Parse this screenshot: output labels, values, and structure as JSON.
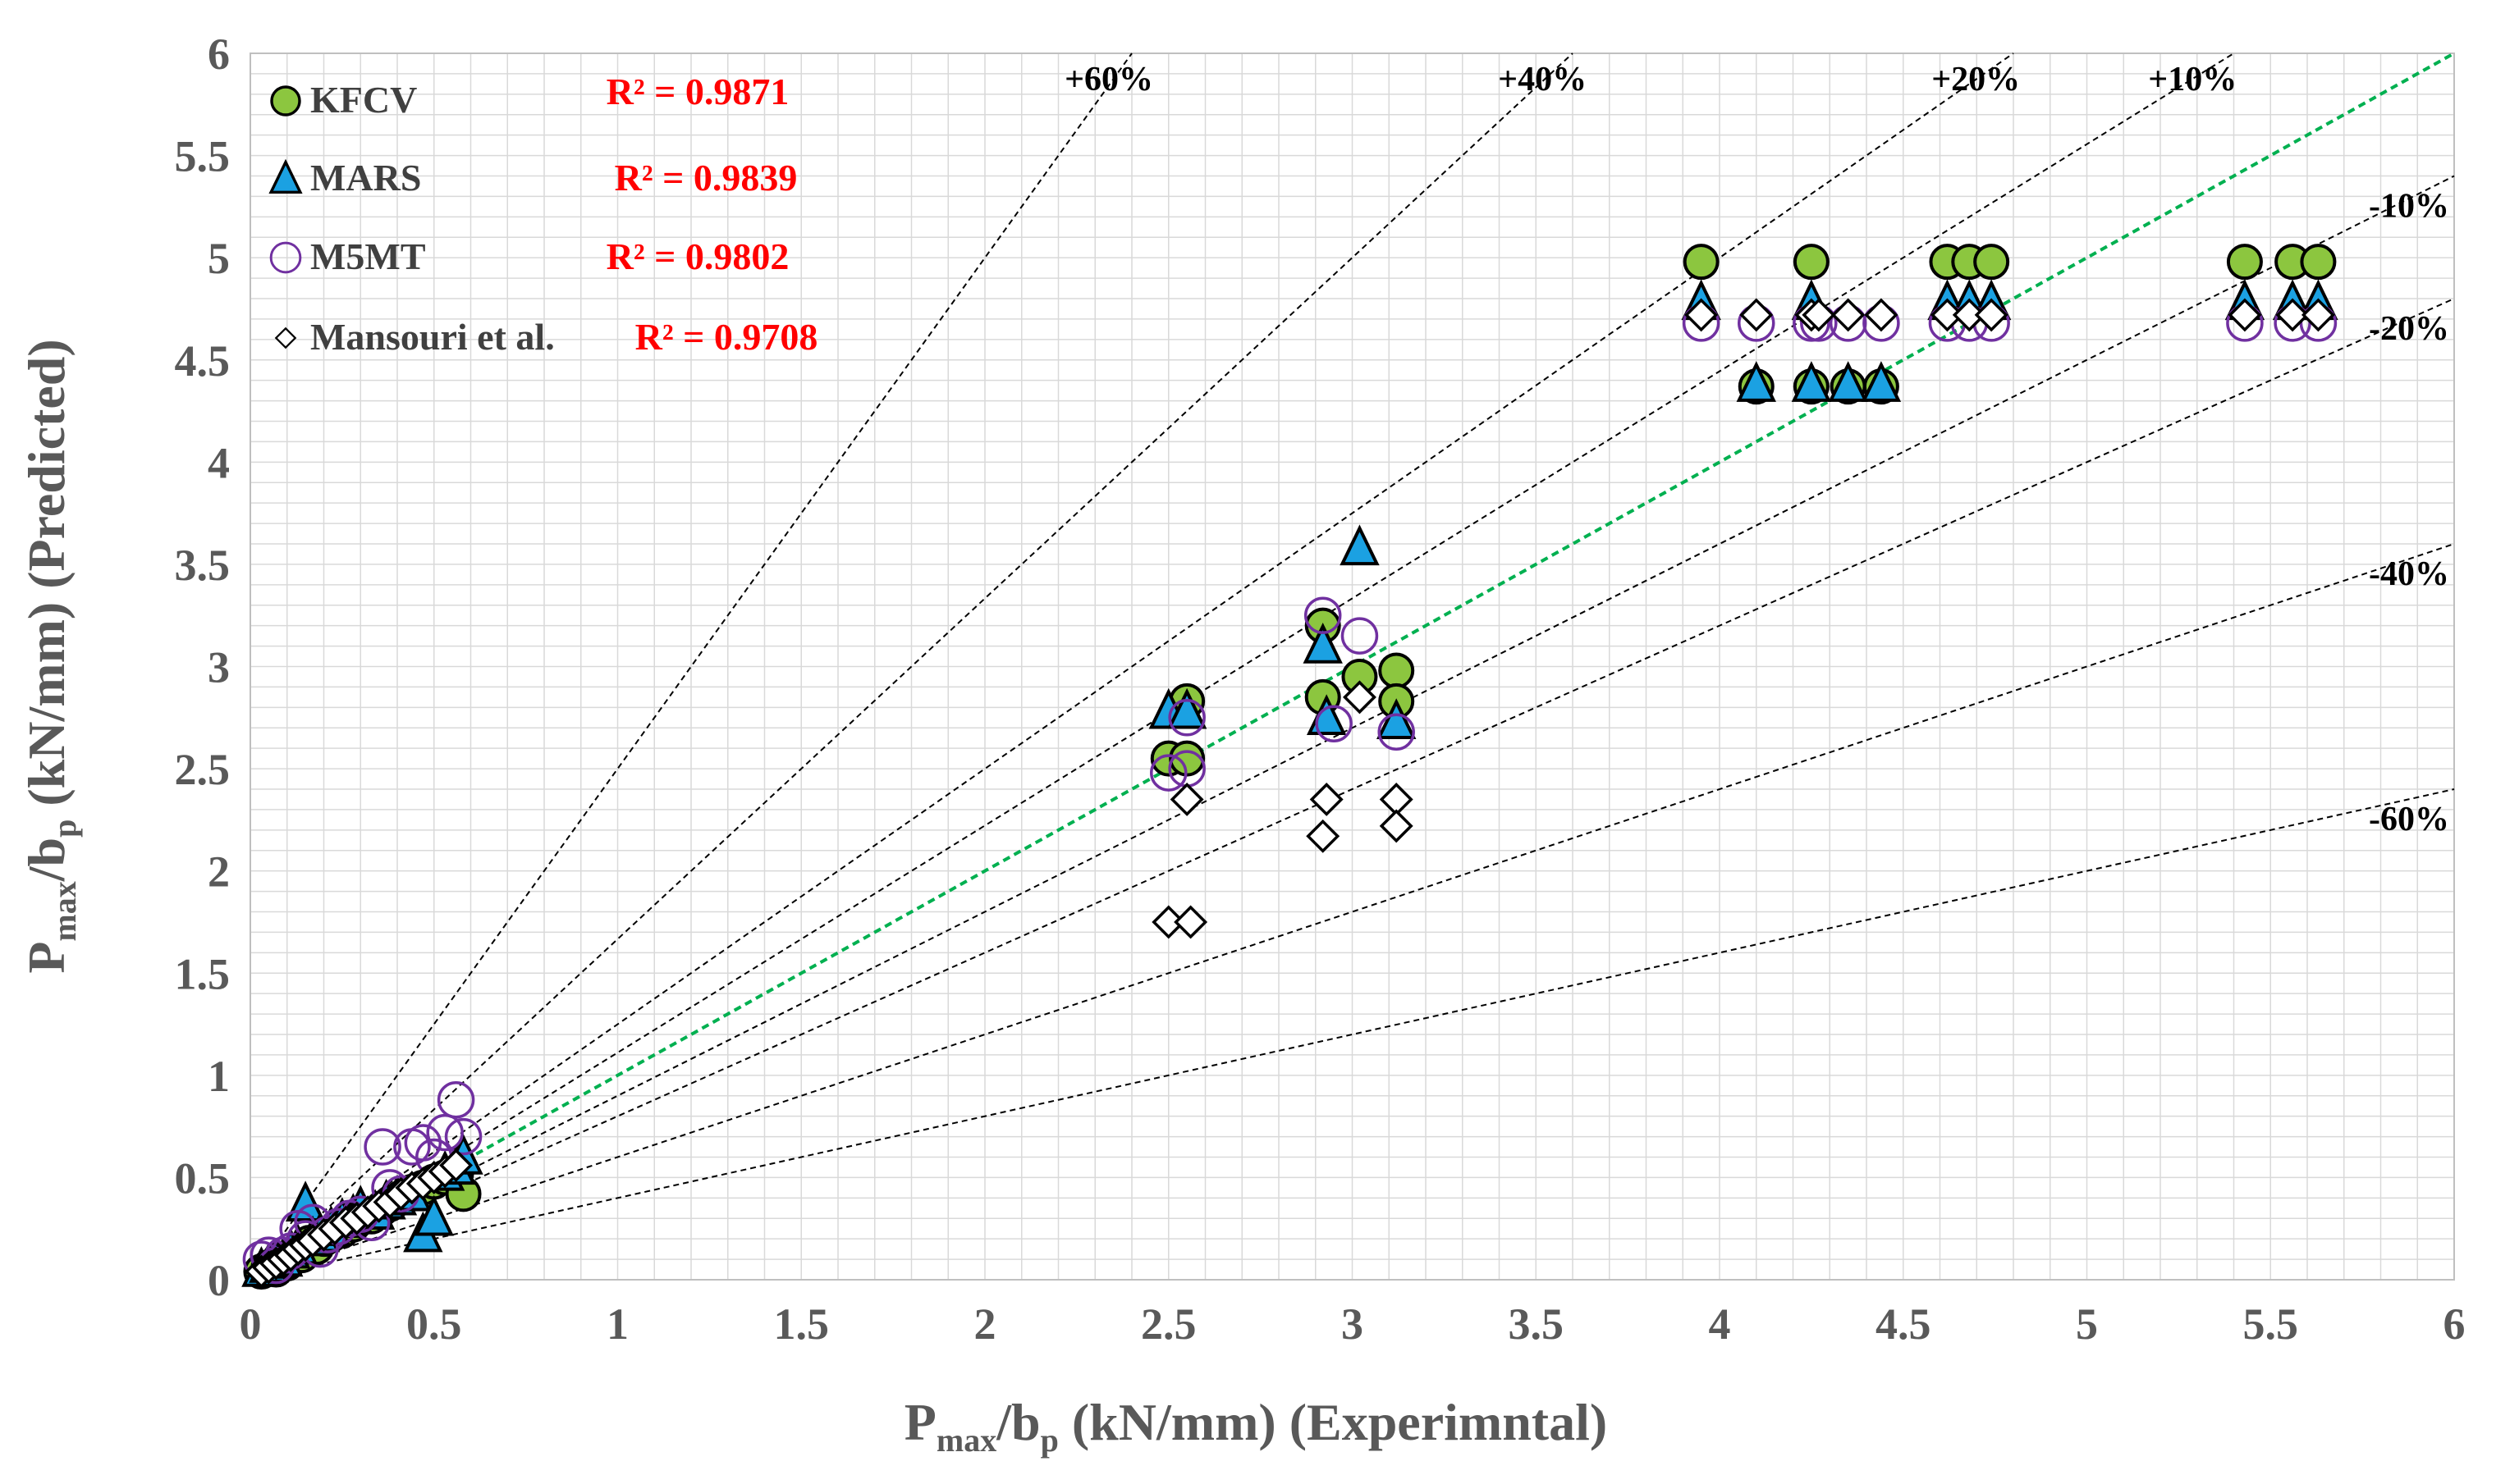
{
  "chart_data": {
    "type": "scatter",
    "title": "",
    "xlabel": {
      "main": "P",
      "sub1": "max",
      "mid": "/b",
      "sub2": "p",
      "rest": " (kN/mm) (Experimntal)"
    },
    "ylabel": {
      "main": "P",
      "sub1": "max",
      "mid": "/b",
      "sub2": "p",
      "rest": " (kN/mm) (Predicted)"
    },
    "xlim": [
      0,
      6
    ],
    "ylim": [
      0,
      6
    ],
    "xticks": [
      0,
      0.5,
      1,
      1.5,
      2,
      2.5,
      3,
      3.5,
      4,
      4.5,
      5,
      5.5,
      6
    ],
    "yticks": [
      0,
      0.5,
      1,
      1.5,
      2,
      2.5,
      3,
      3.5,
      4,
      4.5,
      5,
      5.5,
      6
    ],
    "xtick_labels": [
      "0",
      "0.5",
      "1",
      "1.5",
      "2",
      "2.5",
      "3",
      "3.5",
      "4",
      "4.5",
      "5",
      "5.5",
      "6"
    ],
    "ytick_labels": [
      "0",
      "0.5",
      "1",
      "1.5",
      "2",
      "2.5",
      "3",
      "3.5",
      "4",
      "4.5",
      "5",
      "5.5",
      "6"
    ],
    "minor_grid": 0.1,
    "legend_position": "top-left",
    "colors": {
      "kfcv": "#8cc63f",
      "mars": "#1ba1e2",
      "m5mt": "#7030a0",
      "mansouri": "#000000",
      "ideal_line": "#00b050",
      "grid": "#d9d9d9",
      "r2": "#ff0000"
    },
    "reference_lines": [
      {
        "label": "+60%",
        "slope": 2.5
      },
      {
        "label": "+40%",
        "slope": 1.6667
      },
      {
        "label": "+20%",
        "slope": 1.25
      },
      {
        "label": "+10%",
        "slope": 1.1111
      },
      {
        "label": "-10%",
        "slope": 0.9
      },
      {
        "label": "-20%",
        "slope": 0.8
      },
      {
        "label": "-40%",
        "slope": 0.6
      },
      {
        "label": "-60%",
        "slope": 0.4
      }
    ],
    "ideal_line": {
      "slope": 1,
      "style": "dashed"
    },
    "series": [
      {
        "name": "KFCV",
        "marker": "circle",
        "r2": "R² = 0.9871",
        "points": [
          [
            0.03,
            0.04
          ],
          [
            0.05,
            0.06
          ],
          [
            0.07,
            0.05
          ],
          [
            0.08,
            0.1
          ],
          [
            0.1,
            0.08
          ],
          [
            0.12,
            0.13
          ],
          [
            0.14,
            0.12
          ],
          [
            0.16,
            0.18
          ],
          [
            0.18,
            0.16
          ],
          [
            0.2,
            0.2
          ],
          [
            0.22,
            0.22
          ],
          [
            0.25,
            0.24
          ],
          [
            0.28,
            0.27
          ],
          [
            0.3,
            0.3
          ],
          [
            0.33,
            0.31
          ],
          [
            0.36,
            0.35
          ],
          [
            0.38,
            0.37
          ],
          [
            0.41,
            0.4
          ],
          [
            0.44,
            0.43
          ],
          [
            0.47,
            0.45
          ],
          [
            0.5,
            0.48
          ],
          [
            0.53,
            0.5
          ],
          [
            0.56,
            0.52
          ],
          [
            0.58,
            0.42
          ],
          [
            2.5,
            2.55
          ],
          [
            2.55,
            2.55
          ],
          [
            2.55,
            2.83
          ],
          [
            2.92,
            3.2
          ],
          [
            2.92,
            2.85
          ],
          [
            3.02,
            2.95
          ],
          [
            3.12,
            2.98
          ],
          [
            3.12,
            2.83
          ],
          [
            3.95,
            4.98
          ],
          [
            4.1,
            4.37
          ],
          [
            4.25,
            4.98
          ],
          [
            4.25,
            4.37
          ],
          [
            4.35,
            4.37
          ],
          [
            4.44,
            4.37
          ],
          [
            4.62,
            4.98
          ],
          [
            4.68,
            4.98
          ],
          [
            4.74,
            4.98
          ],
          [
            5.43,
            4.98
          ],
          [
            5.56,
            4.98
          ],
          [
            5.63,
            4.98
          ]
        ]
      },
      {
        "name": "MARS",
        "marker": "triangle",
        "r2": "R² = 0.9839",
        "points": [
          [
            0.03,
            0.05
          ],
          [
            0.05,
            0.07
          ],
          [
            0.07,
            0.09
          ],
          [
            0.09,
            0.1
          ],
          [
            0.11,
            0.14
          ],
          [
            0.13,
            0.16
          ],
          [
            0.15,
            0.37
          ],
          [
            0.17,
            0.2
          ],
          [
            0.19,
            0.22
          ],
          [
            0.22,
            0.25
          ],
          [
            0.25,
            0.29
          ],
          [
            0.28,
            0.31
          ],
          [
            0.3,
            0.35
          ],
          [
            0.34,
            0.33
          ],
          [
            0.37,
            0.38
          ],
          [
            0.4,
            0.4
          ],
          [
            0.44,
            0.42
          ],
          [
            0.47,
            0.22
          ],
          [
            0.5,
            0.3
          ],
          [
            0.53,
            0.52
          ],
          [
            0.56,
            0.55
          ],
          [
            0.58,
            0.6
          ],
          [
            2.5,
            2.78
          ],
          [
            2.55,
            2.78
          ],
          [
            2.92,
            3.1
          ],
          [
            2.93,
            2.75
          ],
          [
            3.02,
            3.58
          ],
          [
            3.12,
            2.73
          ],
          [
            3.95,
            4.78
          ],
          [
            4.1,
            4.38
          ],
          [
            4.25,
            4.78
          ],
          [
            4.25,
            4.38
          ],
          [
            4.35,
            4.38
          ],
          [
            4.44,
            4.38
          ],
          [
            4.62,
            4.78
          ],
          [
            4.68,
            4.78
          ],
          [
            4.74,
            4.78
          ],
          [
            5.43,
            4.78
          ],
          [
            5.56,
            4.78
          ],
          [
            5.63,
            4.78
          ]
        ]
      },
      {
        "name": "M5MT",
        "marker": "open-circle",
        "r2": "R² = 0.9802",
        "points": [
          [
            0.03,
            0.1
          ],
          [
            0.05,
            0.12
          ],
          [
            0.07,
            0.07
          ],
          [
            0.09,
            0.12
          ],
          [
            0.11,
            0.14
          ],
          [
            0.13,
            0.25
          ],
          [
            0.15,
            0.2
          ],
          [
            0.17,
            0.28
          ],
          [
            0.19,
            0.15
          ],
          [
            0.21,
            0.22
          ],
          [
            0.24,
            0.26
          ],
          [
            0.27,
            0.3
          ],
          [
            0.3,
            0.32
          ],
          [
            0.33,
            0.28
          ],
          [
            0.36,
            0.65
          ],
          [
            0.38,
            0.45
          ],
          [
            0.41,
            0.42
          ],
          [
            0.44,
            0.65
          ],
          [
            0.47,
            0.67
          ],
          [
            0.5,
            0.6
          ],
          [
            0.53,
            0.72
          ],
          [
            0.56,
            0.88
          ],
          [
            0.58,
            0.7
          ],
          [
            2.5,
            2.48
          ],
          [
            2.55,
            2.5
          ],
          [
            2.55,
            2.75
          ],
          [
            2.92,
            3.25
          ],
          [
            2.95,
            2.72
          ],
          [
            3.02,
            3.15
          ],
          [
            3.12,
            2.68
          ],
          [
            3.95,
            4.68
          ],
          [
            4.1,
            4.68
          ],
          [
            4.25,
            4.68
          ],
          [
            4.27,
            4.68
          ],
          [
            4.35,
            4.68
          ],
          [
            4.44,
            4.68
          ],
          [
            4.62,
            4.68
          ],
          [
            4.68,
            4.68
          ],
          [
            4.74,
            4.68
          ],
          [
            5.43,
            4.68
          ],
          [
            5.56,
            4.68
          ],
          [
            5.63,
            4.68
          ]
        ]
      },
      {
        "name": "Mansouri et al.",
        "marker": "open-diamond",
        "r2": "R² = 0.9708",
        "points": [
          [
            0.03,
            0.04
          ],
          [
            0.05,
            0.06
          ],
          [
            0.07,
            0.08
          ],
          [
            0.09,
            0.1
          ],
          [
            0.11,
            0.12
          ],
          [
            0.13,
            0.15
          ],
          [
            0.15,
            0.17
          ],
          [
            0.17,
            0.19
          ],
          [
            0.2,
            0.22
          ],
          [
            0.23,
            0.25
          ],
          [
            0.26,
            0.28
          ],
          [
            0.29,
            0.3
          ],
          [
            0.32,
            0.33
          ],
          [
            0.35,
            0.36
          ],
          [
            0.38,
            0.38
          ],
          [
            0.41,
            0.42
          ],
          [
            0.44,
            0.45
          ],
          [
            0.47,
            0.47
          ],
          [
            0.5,
            0.5
          ],
          [
            0.53,
            0.53
          ],
          [
            0.56,
            0.56
          ],
          [
            2.5,
            1.75
          ],
          [
            2.56,
            1.75
          ],
          [
            2.55,
            2.35
          ],
          [
            2.92,
            2.17
          ],
          [
            2.93,
            2.35
          ],
          [
            3.02,
            2.85
          ],
          [
            3.12,
            2.35
          ],
          [
            3.12,
            2.22
          ],
          [
            3.95,
            4.72
          ],
          [
            4.1,
            4.72
          ],
          [
            4.25,
            4.72
          ],
          [
            4.27,
            4.72
          ],
          [
            4.35,
            4.72
          ],
          [
            4.44,
            4.72
          ],
          [
            4.62,
            4.72
          ],
          [
            4.68,
            4.72
          ],
          [
            4.74,
            4.72
          ],
          [
            5.43,
            4.72
          ],
          [
            5.56,
            4.72
          ],
          [
            5.63,
            4.72
          ]
        ]
      }
    ]
  }
}
